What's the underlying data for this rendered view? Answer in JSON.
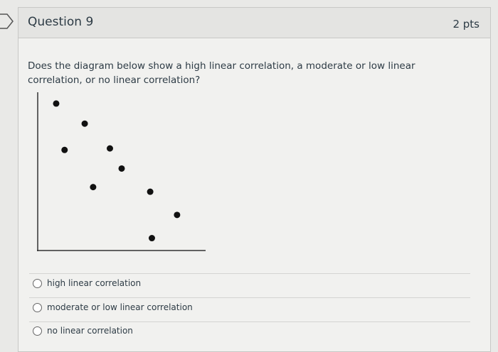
{
  "header": {
    "title": "Question 9",
    "points": "2 pts"
  },
  "question": "Does the diagram below show a high linear correlation, a moderate or low linear correlation, or no linear correlation?",
  "chart_data": {
    "type": "scatter",
    "x": [
      1.1,
      2.8,
      1.6,
      4.3,
      5.0,
      3.3,
      6.7,
      8.3,
      6.8
    ],
    "y": [
      9.5,
      8.2,
      6.5,
      6.6,
      5.3,
      4.1,
      3.8,
      2.3,
      0.8
    ],
    "xlim": [
      0,
      10
    ],
    "ylim": [
      0,
      10
    ],
    "color": "#111111"
  },
  "options": [
    "high linear correlation",
    "moderate or low linear correlation",
    "no linear correlation"
  ]
}
